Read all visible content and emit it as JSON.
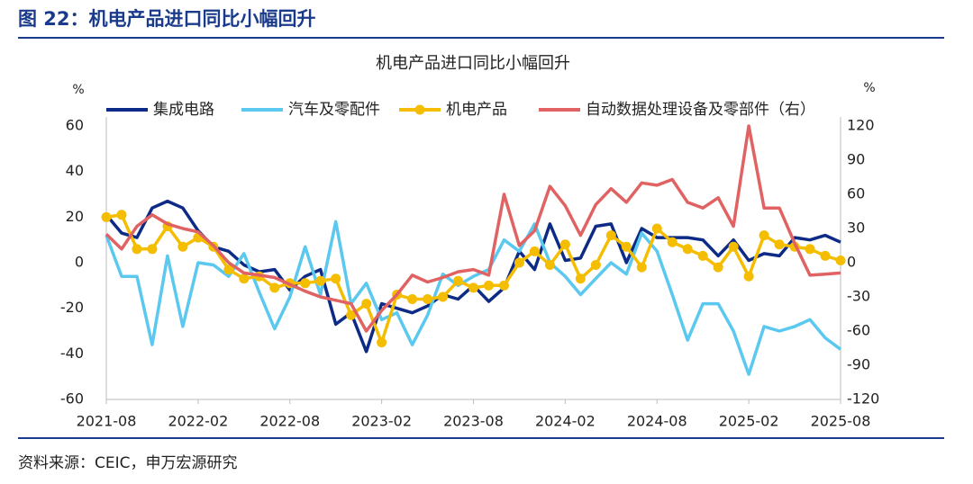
{
  "header": {
    "title": "图 22：机电产品进口同比小幅回升",
    "source": "资料来源：CEIC，申万宏源研究"
  },
  "chart_data": {
    "type": "line",
    "title": "机电产品进口同比小幅回升",
    "y_unit": "%",
    "y2_unit": "%",
    "categories": [
      "2021-08",
      null,
      null,
      null,
      null,
      null,
      "2022-02",
      null,
      null,
      null,
      null,
      null,
      "2022-08",
      null,
      null,
      null,
      null,
      null,
      "2023-02",
      null,
      null,
      null,
      null,
      null,
      "2023-08",
      null,
      null,
      null,
      null,
      null,
      "2024-02",
      null,
      null,
      null,
      null,
      null,
      "2024-08",
      null,
      null,
      null,
      null,
      null,
      "2025-02",
      null,
      null,
      null,
      null,
      null,
      "2025-08"
    ],
    "ylim": [
      -60,
      60
    ],
    "yticks": [
      -60,
      -40,
      -20,
      0,
      20,
      40,
      60
    ],
    "y2lim": [
      -120,
      120
    ],
    "y2ticks": [
      -120,
      -90,
      -60,
      -30,
      0,
      30,
      60,
      90,
      120
    ],
    "legend": "top",
    "series": [
      {
        "name": "集成电路",
        "color": "#0d2b86",
        "values": [
          21,
          13,
          11,
          24,
          27,
          24,
          14,
          7,
          5,
          -1,
          -4,
          -3,
          -12,
          -6,
          -3,
          -27,
          -22,
          -39,
          -18,
          -20,
          -22,
          -19,
          -14,
          -16,
          -10,
          -17,
          -11,
          5,
          -3,
          17,
          1,
          2,
          16,
          17,
          0,
          15,
          11,
          11,
          11,
          10,
          3,
          10,
          1,
          4,
          3,
          11,
          10,
          12,
          9
        ]
      },
      {
        "name": "汽车及零配件",
        "color": "#5bc8ef",
        "values": [
          12,
          -6,
          -6,
          -36,
          3,
          -28,
          0,
          -1,
          -6,
          4,
          -13,
          -29,
          -15,
          7,
          -14,
          18,
          -18,
          -9,
          -25,
          -22,
          -36,
          -23,
          -5,
          -10,
          -6,
          -3,
          10,
          5,
          17,
          0,
          -6,
          -14,
          -7,
          0,
          -5,
          13,
          5,
          -14,
          -34,
          -18,
          -18,
          -30,
          -49,
          -28,
          -30,
          -28,
          -25,
          -33,
          -38
        ]
      },
      {
        "name": "机电产品",
        "color": "#f5bd00",
        "marker": "circle",
        "values": [
          20,
          21,
          6,
          6,
          16,
          7,
          11,
          7,
          -3,
          -7,
          -6,
          -11,
          -9,
          -9,
          -8,
          -7,
          -23,
          -18,
          -35,
          -14,
          -16,
          -16,
          -15,
          -8,
          -11,
          -10,
          -10,
          0,
          5,
          -1,
          8,
          -7,
          -1,
          12,
          7,
          -2,
          15,
          9,
          6,
          3,
          -2,
          7,
          -6,
          12,
          8,
          7,
          6,
          3,
          1
        ]
      },
      {
        "name": "自动数据处理设备及零部件（右）",
        "color": "#e06262",
        "axis": "y2",
        "values": [
          25,
          12,
          32,
          42,
          34,
          30,
          27,
          15,
          0,
          -9,
          -11,
          -13,
          -19,
          -25,
          -30,
          -33,
          -36,
          -60,
          -42,
          -28,
          -11,
          -17,
          -13,
          -8,
          -6,
          -11,
          60,
          15,
          28,
          67,
          50,
          24,
          51,
          65,
          53,
          70,
          68,
          73,
          53,
          48,
          57,
          32,
          120,
          48,
          48,
          17,
          -11,
          -10,
          -9
        ]
      }
    ]
  }
}
